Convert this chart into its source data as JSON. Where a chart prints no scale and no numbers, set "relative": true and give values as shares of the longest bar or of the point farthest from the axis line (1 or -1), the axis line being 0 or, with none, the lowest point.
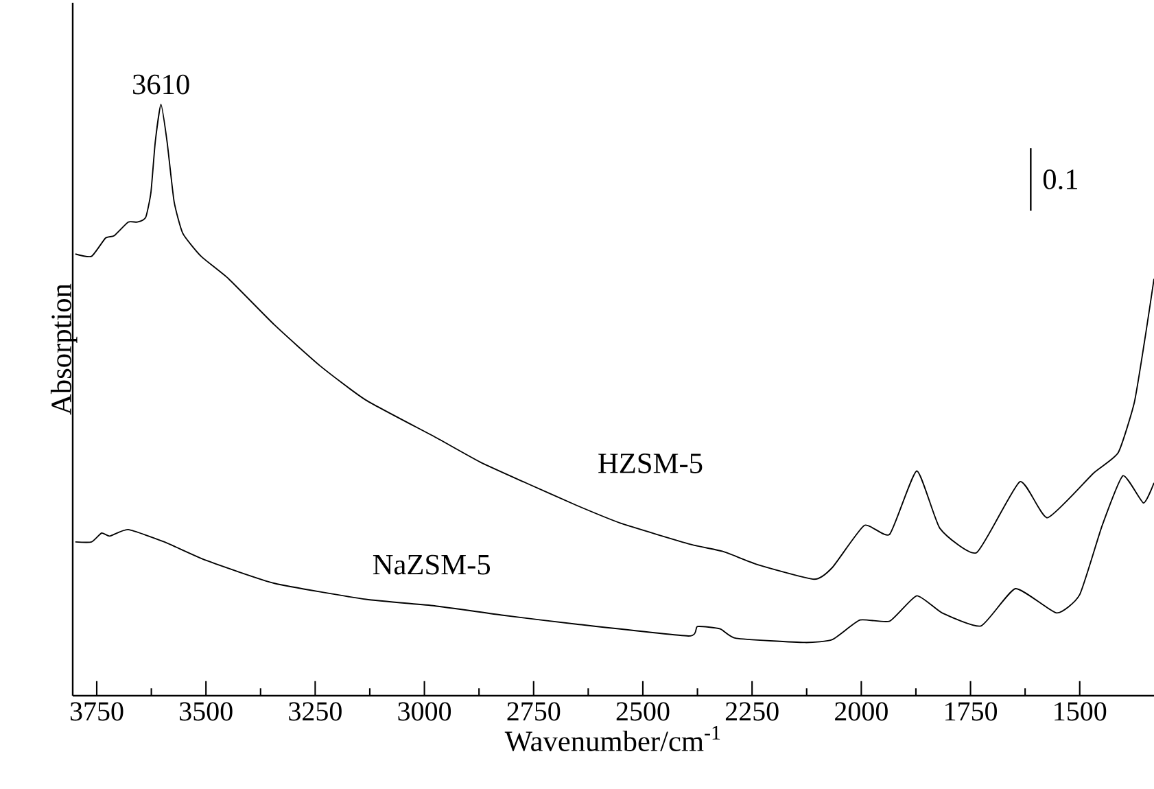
{
  "chart_data": {
    "type": "line",
    "xlabel": "Wavenumber/cm$^{-1}$",
    "ylabel": "Absorption",
    "relative": true,
    "xlim": [
      3805,
      1330
    ],
    "xticks": [
      3750,
      3500,
      3250,
      3000,
      2750,
      2500,
      2250,
      2000,
      1750,
      1500
    ],
    "legend": false,
    "grid": false,
    "marker": "none",
    "line_style": "solid",
    "annotations": [
      {
        "text": "3610",
        "x": 3603,
        "y": 1.0
      },
      "0.1"
    ],
    "series": [
      {
        "name": "HZSM-5",
        "color": "#000000",
        "x": [
          3799,
          3762,
          3730,
          3710,
          3678,
          3657,
          3638,
          3626,
          3616,
          3603,
          3589,
          3573,
          3553,
          3511,
          3448,
          3343,
          3239,
          3134,
          2977,
          2872,
          2768,
          2652,
          2548,
          2391,
          2317,
          2234,
          2108,
          2066,
          1993,
          1935,
          1873,
          1820,
          1736,
          1637,
          1574,
          1469,
          1412,
          1375,
          1349,
          1330
        ],
        "values": [
          0.747,
          0.743,
          0.774,
          0.778,
          0.801,
          0.801,
          0.809,
          0.851,
          0.937,
          1.0,
          0.937,
          0.836,
          0.782,
          0.743,
          0.705,
          0.627,
          0.558,
          0.5,
          0.438,
          0.395,
          0.36,
          0.322,
          0.291,
          0.256,
          0.244,
          0.221,
          0.197,
          0.217,
          0.288,
          0.273,
          0.38,
          0.283,
          0.242,
          0.362,
          0.301,
          0.376,
          0.411,
          0.496,
          0.612,
          0.705
        ]
      },
      {
        "name": "NaZSM-5",
        "color": "#000000",
        "x": [
          3799,
          3762,
          3739,
          3720,
          3678,
          3595,
          3500,
          3343,
          3134,
          2977,
          2820,
          2652,
          2396,
          2375,
          2323,
          2286,
          2129,
          2066,
          2003,
          1935,
          1873,
          1815,
          1726,
          1647,
          1553,
          1500,
          1449,
          1401,
          1354,
          1330
        ],
        "values": [
          0.26,
          0.26,
          0.275,
          0.27,
          0.281,
          0.26,
          0.229,
          0.19,
          0.163,
          0.152,
          0.136,
          0.121,
          0.101,
          0.117,
          0.113,
          0.097,
          0.09,
          0.095,
          0.128,
          0.126,
          0.169,
          0.14,
          0.118,
          0.181,
          0.14,
          0.171,
          0.287,
          0.372,
          0.326,
          0.36
        ]
      }
    ]
  }
}
